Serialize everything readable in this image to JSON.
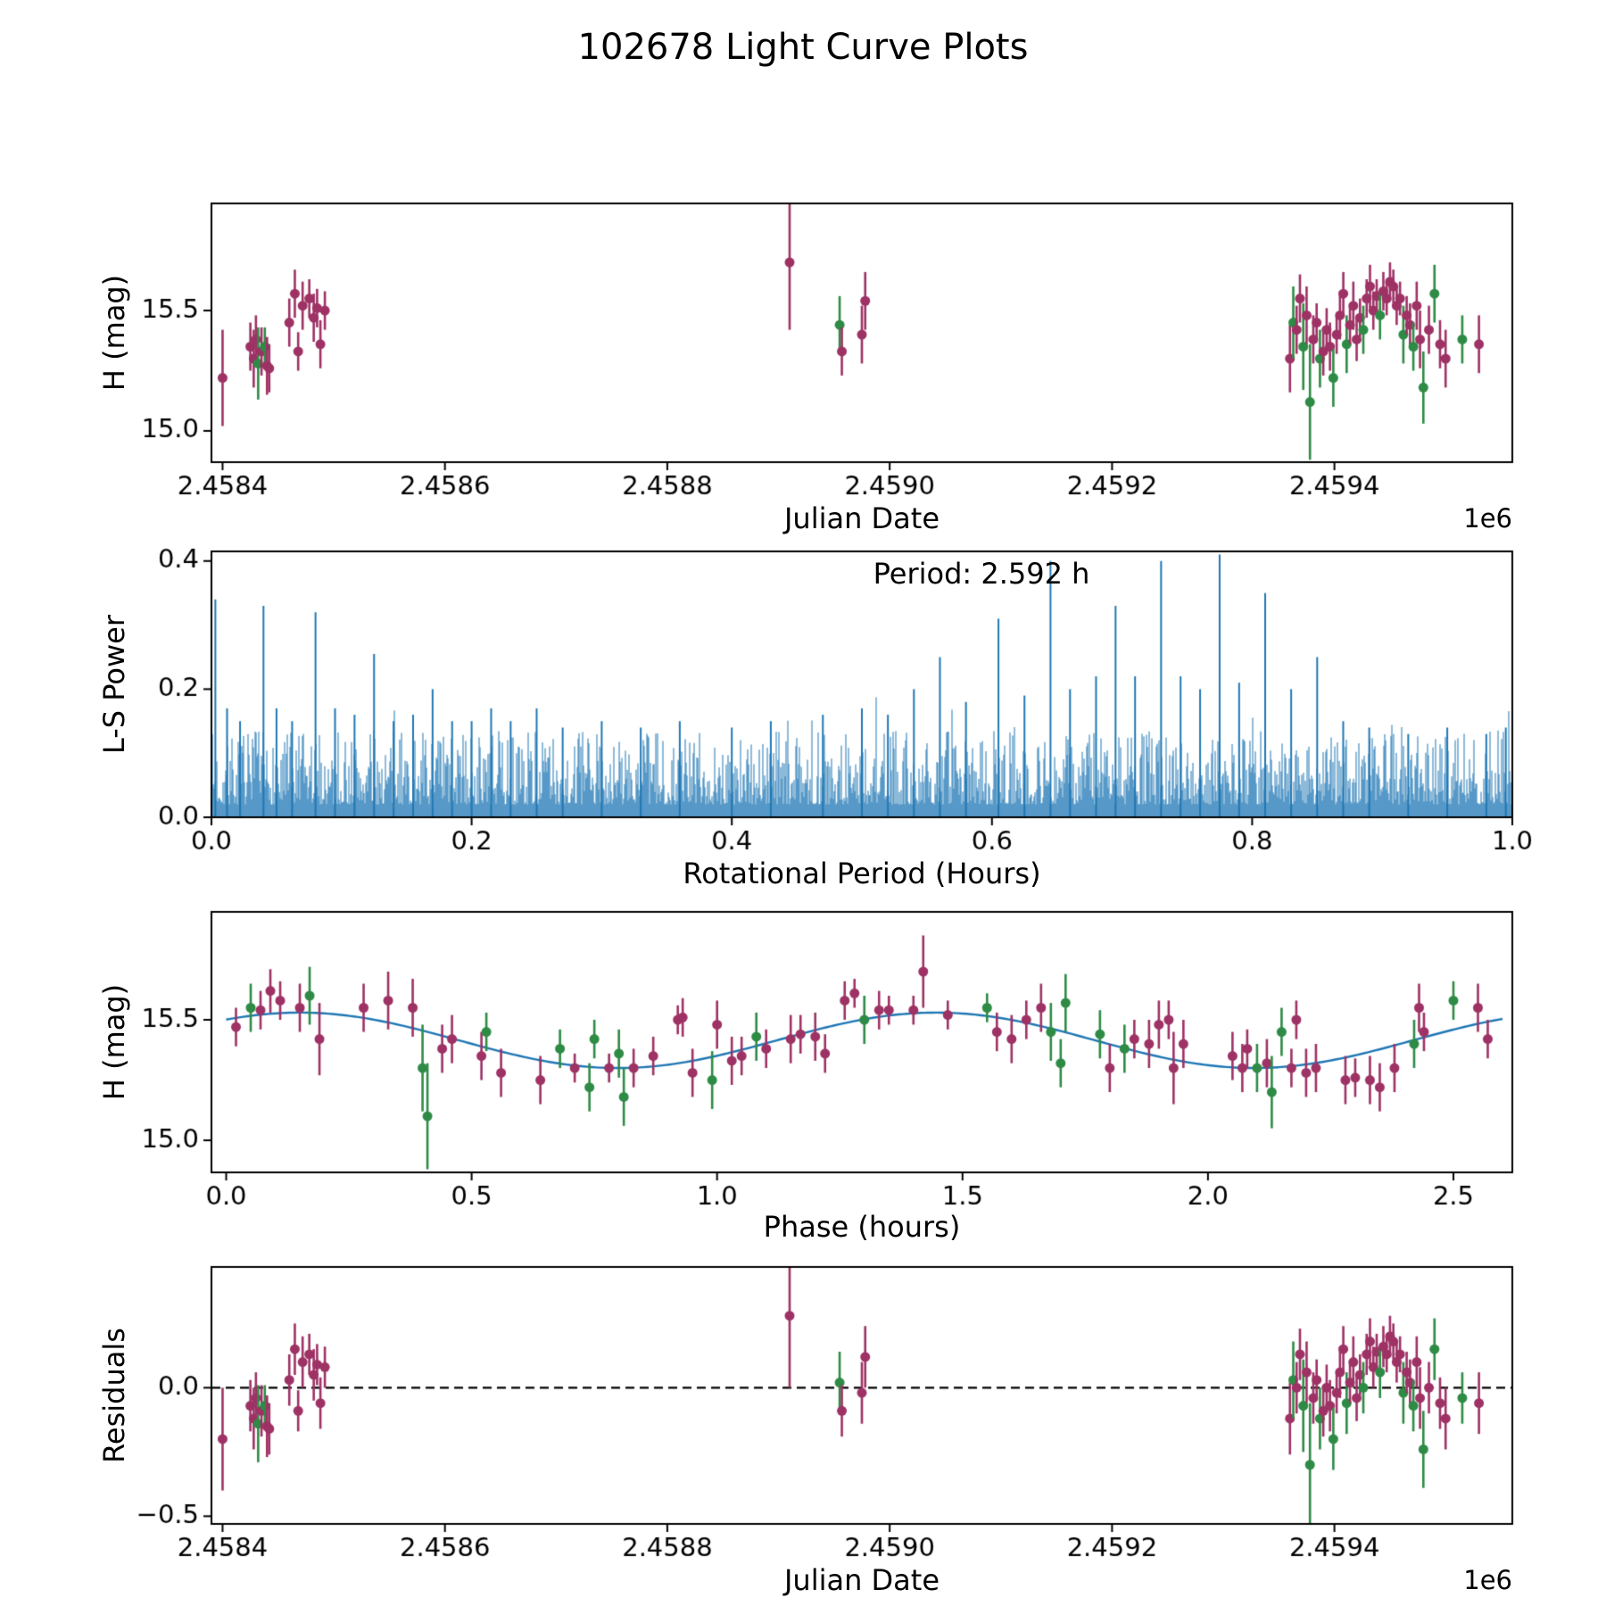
{
  "title": "102678 Light Curve Plots",
  "colors": {
    "purple_series": "#9e3265",
    "green_series": "#2e8b45",
    "line_blue": "#1f77b4",
    "axis": "#000000",
    "background": "#ffffff"
  },
  "chart_data": [
    {
      "panel": "raw-light-curve",
      "type": "scatter",
      "xlabel": "Julian Date",
      "ylabel": "H (mag)",
      "x_offset_label": "1e6",
      "x_scale_note": "x values in units of 1e6 Julian Date",
      "xlim": [
        2.45839,
        2.45956
      ],
      "ylim": [
        14.87,
        15.945
      ],
      "xticks": [
        2.4584,
        2.4586,
        2.4588,
        2.459,
        2.4592,
        2.4594
      ],
      "xtick_labels": [
        "2.4584",
        "2.4586",
        "2.4588",
        "2.4590",
        "2.4592",
        "2.4594"
      ],
      "yticks": [
        15.0,
        15.5
      ],
      "ytick_labels": [
        "15.0",
        "15.5"
      ],
      "points": [
        [
          2.4584,
          15.22,
          0.2,
          "p"
        ],
        [
          2.458425,
          15.35,
          0.1,
          "p"
        ],
        [
          2.458428,
          15.3,
          0.12,
          "p"
        ],
        [
          2.45843,
          15.38,
          0.1,
          "p"
        ],
        [
          2.458432,
          15.28,
          0.15,
          "g"
        ],
        [
          2.458435,
          15.33,
          0.1,
          "p"
        ],
        [
          2.458438,
          15.35,
          0.08,
          "g"
        ],
        [
          2.45844,
          15.27,
          0.12,
          "p"
        ],
        [
          2.458442,
          15.26,
          0.1,
          "p"
        ],
        [
          2.45846,
          15.45,
          0.1,
          "p"
        ],
        [
          2.458465,
          15.57,
          0.1,
          "p"
        ],
        [
          2.458468,
          15.33,
          0.08,
          "p"
        ],
        [
          2.458472,
          15.52,
          0.1,
          "p"
        ],
        [
          2.458478,
          15.55,
          0.08,
          "p"
        ],
        [
          2.458482,
          15.47,
          0.1,
          "p"
        ],
        [
          2.458485,
          15.51,
          0.08,
          "p"
        ],
        [
          2.458488,
          15.36,
          0.1,
          "p"
        ],
        [
          2.458492,
          15.5,
          0.08,
          "p"
        ],
        [
          2.45891,
          15.7,
          0.28,
          "p"
        ],
        [
          2.458955,
          15.44,
          0.12,
          "g"
        ],
        [
          2.458957,
          15.33,
          0.1,
          "p"
        ],
        [
          2.458975,
          15.4,
          0.12,
          "p"
        ],
        [
          2.458978,
          15.54,
          0.12,
          "p"
        ],
        [
          2.45936,
          15.3,
          0.14,
          "p"
        ],
        [
          2.459363,
          15.45,
          0.15,
          "g"
        ],
        [
          2.459366,
          15.42,
          0.1,
          "p"
        ],
        [
          2.459369,
          15.55,
          0.1,
          "p"
        ],
        [
          2.459372,
          15.35,
          0.18,
          "g"
        ],
        [
          2.459375,
          15.48,
          0.12,
          "p"
        ],
        [
          2.459378,
          15.12,
          0.24,
          "g"
        ],
        [
          2.459381,
          15.38,
          0.1,
          "p"
        ],
        [
          2.459384,
          15.45,
          0.08,
          "p"
        ],
        [
          2.459387,
          15.3,
          0.12,
          "g"
        ],
        [
          2.45939,
          15.33,
          0.1,
          "p"
        ],
        [
          2.459393,
          15.42,
          0.09,
          "p"
        ],
        [
          2.459396,
          15.35,
          0.1,
          "p"
        ],
        [
          2.459399,
          15.22,
          0.12,
          "g"
        ],
        [
          2.459402,
          15.4,
          0.08,
          "p"
        ],
        [
          2.459405,
          15.48,
          0.1,
          "p"
        ],
        [
          2.459408,
          15.57,
          0.09,
          "p"
        ],
        [
          2.459411,
          15.36,
          0.12,
          "g"
        ],
        [
          2.459414,
          15.44,
          0.08,
          "p"
        ],
        [
          2.459417,
          15.52,
          0.1,
          "p"
        ],
        [
          2.45942,
          15.38,
          0.09,
          "p"
        ],
        [
          2.459423,
          15.47,
          0.08,
          "p"
        ],
        [
          2.459426,
          15.42,
          0.1,
          "g"
        ],
        [
          2.459429,
          15.55,
          0.08,
          "p"
        ],
        [
          2.459432,
          15.6,
          0.09,
          "p"
        ],
        [
          2.459435,
          15.5,
          0.08,
          "p"
        ],
        [
          2.459438,
          15.56,
          0.07,
          "p"
        ],
        [
          2.459441,
          15.48,
          0.1,
          "g"
        ],
        [
          2.459444,
          15.58,
          0.08,
          "p"
        ],
        [
          2.459447,
          15.55,
          0.07,
          "p"
        ],
        [
          2.45945,
          15.62,
          0.08,
          "p"
        ],
        [
          2.459453,
          15.6,
          0.07,
          "p"
        ],
        [
          2.459456,
          15.52,
          0.08,
          "p"
        ],
        [
          2.459459,
          15.55,
          0.07,
          "p"
        ],
        [
          2.459462,
          15.4,
          0.12,
          "g"
        ],
        [
          2.459465,
          15.48,
          0.08,
          "p"
        ],
        [
          2.459468,
          15.44,
          0.09,
          "p"
        ],
        [
          2.459471,
          15.35,
          0.1,
          "g"
        ],
        [
          2.459474,
          15.52,
          0.1,
          "p"
        ],
        [
          2.459477,
          15.38,
          0.12,
          "p"
        ],
        [
          2.45948,
          15.18,
          0.15,
          "g"
        ],
        [
          2.459485,
          15.42,
          0.1,
          "p"
        ],
        [
          2.45949,
          15.57,
          0.12,
          "g"
        ],
        [
          2.459495,
          15.36,
          0.1,
          "p"
        ],
        [
          2.4595,
          15.3,
          0.12,
          "p"
        ],
        [
          2.459515,
          15.38,
          0.1,
          "g"
        ],
        [
          2.45953,
          15.36,
          0.12,
          "p"
        ]
      ]
    },
    {
      "panel": "periodogram",
      "type": "line",
      "xlabel": "Rotational Period (Hours)",
      "ylabel": "L-S Power",
      "annotation": "Period: 2.592 h",
      "xlim": [
        0,
        1
      ],
      "ylim": [
        0,
        0.415
      ],
      "xticks": [
        0.0,
        0.2,
        0.4,
        0.6,
        0.8,
        1.0
      ],
      "xtick_labels": [
        "0.0",
        "0.2",
        "0.4",
        "0.6",
        "0.8",
        "1.0"
      ],
      "yticks": [
        0.0,
        0.2,
        0.4
      ],
      "ytick_labels": [
        "0.0",
        "0.2",
        "0.4"
      ],
      "peaks": [
        [
          0.003,
          0.34
        ],
        [
          0.012,
          0.17
        ],
        [
          0.022,
          0.15
        ],
        [
          0.04,
          0.33
        ],
        [
          0.05,
          0.17
        ],
        [
          0.062,
          0.15
        ],
        [
          0.08,
          0.32
        ],
        [
          0.095,
          0.17
        ],
        [
          0.11,
          0.16
        ],
        [
          0.125,
          0.255
        ],
        [
          0.14,
          0.15
        ],
        [
          0.155,
          0.16
        ],
        [
          0.17,
          0.2
        ],
        [
          0.185,
          0.15
        ],
        [
          0.2,
          0.15
        ],
        [
          0.215,
          0.17
        ],
        [
          0.23,
          0.15
        ],
        [
          0.25,
          0.17
        ],
        [
          0.27,
          0.14
        ],
        [
          0.3,
          0.15
        ],
        [
          0.33,
          0.14
        ],
        [
          0.36,
          0.15
        ],
        [
          0.4,
          0.14
        ],
        [
          0.43,
          0.15
        ],
        [
          0.47,
          0.16
        ],
        [
          0.5,
          0.17
        ],
        [
          0.52,
          0.16
        ],
        [
          0.54,
          0.2
        ],
        [
          0.56,
          0.25
        ],
        [
          0.58,
          0.18
        ],
        [
          0.605,
          0.31
        ],
        [
          0.625,
          0.19
        ],
        [
          0.645,
          0.4
        ],
        [
          0.66,
          0.2
        ],
        [
          0.68,
          0.22
        ],
        [
          0.695,
          0.33
        ],
        [
          0.71,
          0.22
        ],
        [
          0.73,
          0.4
        ],
        [
          0.745,
          0.22
        ],
        [
          0.76,
          0.2
        ],
        [
          0.775,
          0.41
        ],
        [
          0.79,
          0.21
        ],
        [
          0.81,
          0.35
        ],
        [
          0.83,
          0.2
        ],
        [
          0.85,
          0.25
        ],
        [
          0.87,
          0.15
        ],
        [
          0.89,
          0.14
        ],
        [
          0.92,
          0.13
        ],
        [
          0.95,
          0.14
        ],
        [
          0.98,
          0.13
        ],
        [
          0.995,
          0.14
        ]
      ],
      "noise": {
        "seed": 7,
        "base": 0.02,
        "typical": 0.115,
        "spike_fraction": 0.05,
        "spike_extra": 0.07
      }
    },
    {
      "panel": "phased-light-curve",
      "type": "scatter+line",
      "xlabel": "Phase (hours)",
      "ylabel": "H (mag)",
      "xlim": [
        -0.03,
        2.62
      ],
      "ylim": [
        14.867,
        15.948
      ],
      "xticks": [
        0.0,
        0.5,
        1.0,
        1.5,
        2.0,
        2.5
      ],
      "xtick_labels": [
        "0.0",
        "0.5",
        "1.0",
        "1.5",
        "2.0",
        "2.5"
      ],
      "yticks": [
        15.0,
        15.5
      ],
      "ytick_labels": [
        "15.0",
        "15.5"
      ],
      "fit": {
        "mean": 15.415,
        "amplitude": 0.115,
        "period_hours": 1.296,
        "phase_of_max": 0.15,
        "curve_range": [
          0.0,
          2.6
        ],
        "full_period_label": "2.592 h"
      },
      "points": [
        [
          0.02,
          15.47,
          0.08,
          "p"
        ],
        [
          0.05,
          15.55,
          0.1,
          "g"
        ],
        [
          0.07,
          15.54,
          0.08,
          "p"
        ],
        [
          0.09,
          15.62,
          0.09,
          "p"
        ],
        [
          0.11,
          15.58,
          0.08,
          "p"
        ],
        [
          0.15,
          15.55,
          0.1,
          "p"
        ],
        [
          0.17,
          15.6,
          0.12,
          "g"
        ],
        [
          0.19,
          15.42,
          0.15,
          "p"
        ],
        [
          0.28,
          15.55,
          0.1,
          "p"
        ],
        [
          0.33,
          15.58,
          0.12,
          "p"
        ],
        [
          0.38,
          15.55,
          0.12,
          "p"
        ],
        [
          0.4,
          15.3,
          0.18,
          "g"
        ],
        [
          0.41,
          15.1,
          0.22,
          "g"
        ],
        [
          0.44,
          15.38,
          0.1,
          "p"
        ],
        [
          0.46,
          15.42,
          0.1,
          "p"
        ],
        [
          0.52,
          15.35,
          0.1,
          "p"
        ],
        [
          0.53,
          15.45,
          0.08,
          "g"
        ],
        [
          0.56,
          15.28,
          0.1,
          "p"
        ],
        [
          0.64,
          15.25,
          0.1,
          "p"
        ],
        [
          0.68,
          15.38,
          0.08,
          "g"
        ],
        [
          0.71,
          15.3,
          0.06,
          "p"
        ],
        [
          0.74,
          15.22,
          0.1,
          "g"
        ],
        [
          0.75,
          15.42,
          0.08,
          "g"
        ],
        [
          0.78,
          15.3,
          0.06,
          "p"
        ],
        [
          0.8,
          15.36,
          0.1,
          "g"
        ],
        [
          0.81,
          15.18,
          0.12,
          "g"
        ],
        [
          0.83,
          15.3,
          0.08,
          "p"
        ],
        [
          0.87,
          15.35,
          0.08,
          "p"
        ],
        [
          0.92,
          15.5,
          0.06,
          "p"
        ],
        [
          0.93,
          15.51,
          0.08,
          "p"
        ],
        [
          0.95,
          15.28,
          0.1,
          "p"
        ],
        [
          0.99,
          15.25,
          0.12,
          "g"
        ],
        [
          1.0,
          15.48,
          0.1,
          "p"
        ],
        [
          1.03,
          15.33,
          0.1,
          "p"
        ],
        [
          1.05,
          15.35,
          0.08,
          "p"
        ],
        [
          1.08,
          15.43,
          0.1,
          "g"
        ],
        [
          1.1,
          15.38,
          0.08,
          "p"
        ],
        [
          1.15,
          15.42,
          0.1,
          "p"
        ],
        [
          1.17,
          15.44,
          0.08,
          "p"
        ],
        [
          1.2,
          15.43,
          0.1,
          "p"
        ],
        [
          1.22,
          15.36,
          0.08,
          "p"
        ],
        [
          1.26,
          15.58,
          0.08,
          "p"
        ],
        [
          1.28,
          15.61,
          0.06,
          "p"
        ],
        [
          1.3,
          15.5,
          0.1,
          "g"
        ],
        [
          1.33,
          15.54,
          0.08,
          "p"
        ],
        [
          1.35,
          15.54,
          0.06,
          "p"
        ],
        [
          1.4,
          15.54,
          0.06,
          "p"
        ],
        [
          1.42,
          15.7,
          0.15,
          "p"
        ],
        [
          1.47,
          15.52,
          0.06,
          "p"
        ],
        [
          1.55,
          15.55,
          0.06,
          "g"
        ],
        [
          1.57,
          15.45,
          0.08,
          "p"
        ],
        [
          1.6,
          15.42,
          0.1,
          "p"
        ],
        [
          1.63,
          15.5,
          0.08,
          "p"
        ],
        [
          1.66,
          15.55,
          0.1,
          "p"
        ],
        [
          1.68,
          15.45,
          0.12,
          "g"
        ],
        [
          1.7,
          15.32,
          0.1,
          "g"
        ],
        [
          1.71,
          15.57,
          0.12,
          "g"
        ],
        [
          1.78,
          15.44,
          0.1,
          "g"
        ],
        [
          1.8,
          15.3,
          0.1,
          "p"
        ],
        [
          1.83,
          15.38,
          0.1,
          "g"
        ],
        [
          1.85,
          15.42,
          0.08,
          "p"
        ],
        [
          1.88,
          15.4,
          0.1,
          "p"
        ],
        [
          1.9,
          15.48,
          0.1,
          "p"
        ],
        [
          1.92,
          15.5,
          0.08,
          "p"
        ],
        [
          1.93,
          15.3,
          0.15,
          "p"
        ],
        [
          1.95,
          15.4,
          0.1,
          "p"
        ],
        [
          2.05,
          15.35,
          0.1,
          "p"
        ],
        [
          2.07,
          15.3,
          0.1,
          "p"
        ],
        [
          2.08,
          15.38,
          0.08,
          "p"
        ],
        [
          2.1,
          15.3,
          0.1,
          "g"
        ],
        [
          2.12,
          15.32,
          0.1,
          "p"
        ],
        [
          2.13,
          15.2,
          0.15,
          "g"
        ],
        [
          2.15,
          15.45,
          0.1,
          "g"
        ],
        [
          2.17,
          15.3,
          0.08,
          "p"
        ],
        [
          2.18,
          15.5,
          0.08,
          "p"
        ],
        [
          2.2,
          15.28,
          0.1,
          "p"
        ],
        [
          2.22,
          15.3,
          0.1,
          "p"
        ],
        [
          2.28,
          15.25,
          0.1,
          "p"
        ],
        [
          2.3,
          15.26,
          0.08,
          "p"
        ],
        [
          2.33,
          15.25,
          0.1,
          "p"
        ],
        [
          2.35,
          15.22,
          0.1,
          "p"
        ],
        [
          2.38,
          15.3,
          0.1,
          "p"
        ],
        [
          2.42,
          15.4,
          0.1,
          "g"
        ],
        [
          2.43,
          15.55,
          0.1,
          "p"
        ],
        [
          2.44,
          15.45,
          0.08,
          "p"
        ],
        [
          2.5,
          15.58,
          0.08,
          "g"
        ],
        [
          2.55,
          15.55,
          0.1,
          "p"
        ],
        [
          2.57,
          15.42,
          0.08,
          "p"
        ]
      ]
    },
    {
      "panel": "residuals",
      "type": "scatter",
      "xlabel": "Julian Date",
      "ylabel": "Residuals",
      "x_offset_label": "1e6",
      "xlim": [
        2.45839,
        2.45956
      ],
      "ylim": [
        -0.53,
        0.47
      ],
      "xticks": [
        2.4584,
        2.4586,
        2.4588,
        2.459,
        2.4592,
        2.4594
      ],
      "xtick_labels": [
        "2.4584",
        "2.4586",
        "2.4588",
        "2.4590",
        "2.4592",
        "2.4594"
      ],
      "yticks": [
        -0.5,
        0.0
      ],
      "ytick_labels": [
        "−0.5",
        "0.0"
      ],
      "zero_line": 0.0,
      "fit_reference_mag": 15.42,
      "residual_rule": "residual = H_mag - fit_reference_mag, same epochs/errors as raw-light-curve panel"
    }
  ]
}
